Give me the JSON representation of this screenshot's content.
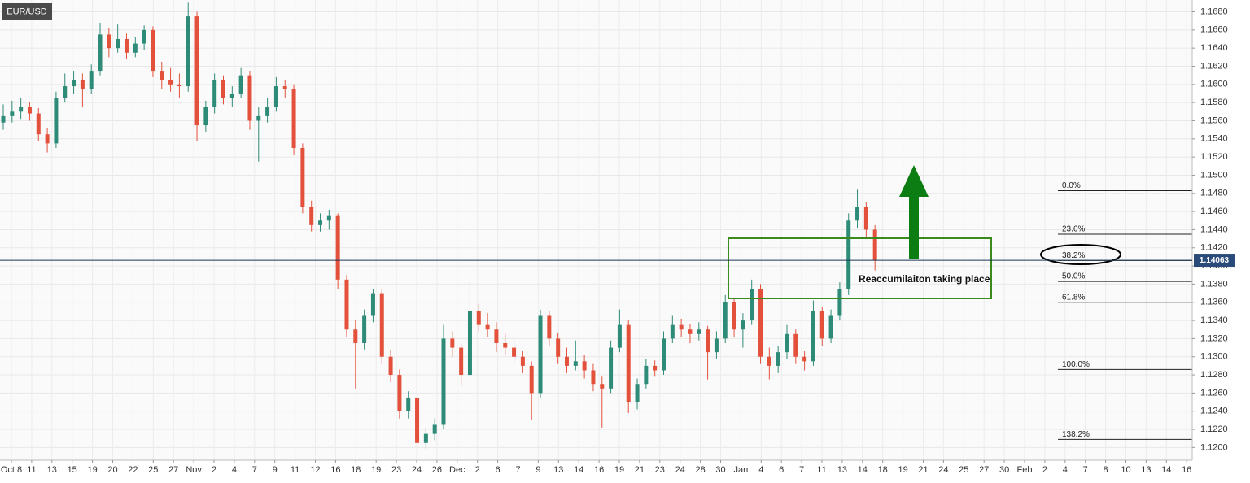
{
  "chart_data": {
    "type": "candlestick",
    "title": "EUR/USD",
    "annotation": "Reaccumilaiton taking place",
    "up_color": "#2e8b77",
    "down_color": "#e3513d",
    "grid": true,
    "ylim": [
      1.1186,
      1.1693
    ],
    "yticks": [
      {
        "value": 1.12,
        "label": "1.1200"
      },
      {
        "value": 1.122,
        "label": "1.1220"
      },
      {
        "value": 1.124,
        "label": "1.1240"
      },
      {
        "value": 1.126,
        "label": "1.1260"
      },
      {
        "value": 1.128,
        "label": "1.1280"
      },
      {
        "value": 1.13,
        "label": "1.1300"
      },
      {
        "value": 1.132,
        "label": "1.1320"
      },
      {
        "value": 1.134,
        "label": "1.1340"
      },
      {
        "value": 1.136,
        "label": "1.1360"
      },
      {
        "value": 1.138,
        "label": "1.1380"
      },
      {
        "value": 1.14,
        "label": "1.1400"
      },
      {
        "value": 1.142,
        "label": "1.1420"
      },
      {
        "value": 1.144,
        "label": "1.1440"
      },
      {
        "value": 1.146,
        "label": "1.1460"
      },
      {
        "value": 1.148,
        "label": "1.1480"
      },
      {
        "value": 1.15,
        "label": "1.1500"
      },
      {
        "value": 1.152,
        "label": "1.1520"
      },
      {
        "value": 1.154,
        "label": "1.1540"
      },
      {
        "value": 1.156,
        "label": "1.1560"
      },
      {
        "value": 1.158,
        "label": "1.1580"
      },
      {
        "value": 1.16,
        "label": "1.1600"
      },
      {
        "value": 1.162,
        "label": "1.1620"
      },
      {
        "value": 1.164,
        "label": "1.1640"
      },
      {
        "value": 1.166,
        "label": "1.1660"
      },
      {
        "value": 1.168,
        "label": "1.1680"
      }
    ],
    "categories": [
      "Oct 8",
      "11",
      "13",
      "15",
      "19",
      "20",
      "22",
      "25",
      "27",
      "Nov",
      "2",
      "4",
      "7",
      "9",
      "11",
      "12",
      "16",
      "18",
      "19",
      "23",
      "24",
      "26",
      "Dec",
      "2",
      "6",
      "7",
      "9",
      "13",
      "14",
      "16",
      "19",
      "21",
      "23",
      "24",
      "28",
      "30",
      "Jan",
      "4",
      "6",
      "7",
      "11",
      "13",
      "14",
      "18",
      "19",
      "21",
      "24",
      "25",
      "27",
      "30",
      "Feb",
      "2",
      "4",
      "7",
      "8",
      "10",
      "13",
      "14",
      "16"
    ],
    "last_price": 1.14063,
    "fib_levels": [
      {
        "label": "0.0%",
        "value": 1.1483
      },
      {
        "label": "23.6%",
        "value": 1.1435
      },
      {
        "label": "38.2%",
        "value": 1.1406
      },
      {
        "label": "50.0%",
        "value": 1.1383
      },
      {
        "label": "61.8%",
        "value": 1.136
      },
      {
        "label": "100.0%",
        "value": 1.1286
      },
      {
        "label": "138.2%",
        "value": 1.1209
      }
    ],
    "candles": [
      [
        1.1558,
        1.1578,
        1.155,
        1.1565
      ],
      [
        1.1565,
        1.1582,
        1.1558,
        1.157
      ],
      [
        1.157,
        1.1585,
        1.1562,
        1.1575
      ],
      [
        1.1575,
        1.158,
        1.156,
        1.1568
      ],
      [
        1.1568,
        1.1574,
        1.1538,
        1.1545
      ],
      [
        1.1545,
        1.1552,
        1.1525,
        1.1535
      ],
      [
        1.1535,
        1.1592,
        1.153,
        1.1585
      ],
      [
        1.1585,
        1.1612,
        1.158,
        1.1598
      ],
      [
        1.1598,
        1.1615,
        1.159,
        1.1605
      ],
      [
        1.1605,
        1.1612,
        1.1575,
        1.1595
      ],
      [
        1.1595,
        1.1622,
        1.159,
        1.1615
      ],
      [
        1.1615,
        1.1668,
        1.161,
        1.1655
      ],
      [
        1.1655,
        1.1662,
        1.163,
        1.164
      ],
      [
        1.164,
        1.1666,
        1.1635,
        1.165
      ],
      [
        1.165,
        1.1656,
        1.1628,
        1.1635
      ],
      [
        1.1635,
        1.1652,
        1.163,
        1.1645
      ],
      [
        1.1645,
        1.1665,
        1.1638,
        1.166
      ],
      [
        1.166,
        1.1664,
        1.1608,
        1.1615
      ],
      [
        1.1615,
        1.1625,
        1.1595,
        1.1605
      ],
      [
        1.1605,
        1.1618,
        1.1592,
        1.16
      ],
      [
        1.16,
        1.1612,
        1.1585,
        1.1598
      ],
      [
        1.1598,
        1.169,
        1.1592,
        1.1675
      ],
      [
        1.1675,
        1.168,
        1.1538,
        1.1555
      ],
      [
        1.1555,
        1.1582,
        1.1548,
        1.1575
      ],
      [
        1.1575,
        1.1612,
        1.1568,
        1.1605
      ],
      [
        1.1605,
        1.161,
        1.1578,
        1.1585
      ],
      [
        1.1585,
        1.1598,
        1.1575,
        1.159
      ],
      [
        1.159,
        1.1618,
        1.1585,
        1.161
      ],
      [
        1.161,
        1.1615,
        1.155,
        1.156
      ],
      [
        1.156,
        1.1575,
        1.1515,
        1.1565
      ],
      [
        1.1565,
        1.1585,
        1.1558,
        1.1575
      ],
      [
        1.1575,
        1.1608,
        1.157,
        1.1598
      ],
      [
        1.1598,
        1.1605,
        1.1585,
        1.1595
      ],
      [
        1.1595,
        1.16,
        1.1522,
        1.153
      ],
      [
        1.153,
        1.1535,
        1.1458,
        1.1465
      ],
      [
        1.1465,
        1.1472,
        1.1438,
        1.1445
      ],
      [
        1.1445,
        1.1458,
        1.1438,
        1.145
      ],
      [
        1.145,
        1.1462,
        1.144,
        1.1455
      ],
      [
        1.1455,
        1.1458,
        1.1375,
        1.1385
      ],
      [
        1.1385,
        1.139,
        1.1322,
        1.133
      ],
      [
        1.133,
        1.134,
        1.1265,
        1.1315
      ],
      [
        1.1315,
        1.1352,
        1.1308,
        1.1345
      ],
      [
        1.1345,
        1.1375,
        1.1338,
        1.137
      ],
      [
        1.137,
        1.1374,
        1.1292,
        1.13
      ],
      [
        1.13,
        1.1308,
        1.1272,
        1.128
      ],
      [
        1.128,
        1.1286,
        1.1232,
        1.124
      ],
      [
        1.124,
        1.1262,
        1.1232,
        1.1255
      ],
      [
        1.1255,
        1.126,
        1.1193,
        1.1205
      ],
      [
        1.1205,
        1.1222,
        1.1198,
        1.1215
      ],
      [
        1.1215,
        1.1232,
        1.1208,
        1.1225
      ],
      [
        1.1225,
        1.1335,
        1.122,
        1.132
      ],
      [
        1.132,
        1.1328,
        1.13,
        1.131
      ],
      [
        1.131,
        1.1315,
        1.1268,
        1.128
      ],
      [
        1.128,
        1.1382,
        1.1275,
        1.135
      ],
      [
        1.135,
        1.1358,
        1.1328,
        1.1335
      ],
      [
        1.1335,
        1.1348,
        1.1322,
        1.133
      ],
      [
        1.133,
        1.1338,
        1.1305,
        1.1315
      ],
      [
        1.1315,
        1.1325,
        1.1302,
        1.131
      ],
      [
        1.131,
        1.1318,
        1.1292,
        1.13
      ],
      [
        1.13,
        1.1306,
        1.1282,
        1.129
      ],
      [
        1.129,
        1.1295,
        1.123,
        1.126
      ],
      [
        1.126,
        1.1352,
        1.1255,
        1.1345
      ],
      [
        1.1345,
        1.135,
        1.1312,
        1.132
      ],
      [
        1.132,
        1.1326,
        1.1292,
        1.13
      ],
      [
        1.13,
        1.131,
        1.1282,
        1.129
      ],
      [
        1.129,
        1.1318,
        1.1285,
        1.1295
      ],
      [
        1.1295,
        1.1302,
        1.1276,
        1.1285
      ],
      [
        1.1285,
        1.1292,
        1.1262,
        1.127
      ],
      [
        1.127,
        1.1278,
        1.1222,
        1.1265
      ],
      [
        1.1265,
        1.1318,
        1.126,
        1.131
      ],
      [
        1.131,
        1.1352,
        1.1305,
        1.1335
      ],
      [
        1.1335,
        1.134,
        1.1238,
        1.125
      ],
      [
        1.125,
        1.1276,
        1.1242,
        1.127
      ],
      [
        1.127,
        1.1298,
        1.1265,
        1.129
      ],
      [
        1.129,
        1.1296,
        1.1278,
        1.1285
      ],
      [
        1.1285,
        1.1328,
        1.128,
        1.132
      ],
      [
        1.132,
        1.1345,
        1.1315,
        1.1335
      ],
      [
        1.1335,
        1.1342,
        1.1322,
        1.133
      ],
      [
        1.133,
        1.1336,
        1.1315,
        1.1325
      ],
      [
        1.1325,
        1.1338,
        1.1318,
        1.133
      ],
      [
        1.133,
        1.1334,
        1.1275,
        1.1305
      ],
      [
        1.1305,
        1.1328,
        1.1298,
        1.132
      ],
      [
        1.132,
        1.1368,
        1.1315,
        1.136
      ],
      [
        1.136,
        1.1364,
        1.1322,
        1.133
      ],
      [
        1.133,
        1.1348,
        1.131,
        1.134
      ],
      [
        1.134,
        1.1385,
        1.1335,
        1.1375
      ],
      [
        1.1375,
        1.138,
        1.1292,
        1.13
      ],
      [
        1.13,
        1.131,
        1.1275,
        1.129
      ],
      [
        1.129,
        1.1312,
        1.1282,
        1.1305
      ],
      [
        1.1305,
        1.1335,
        1.1298,
        1.1325
      ],
      [
        1.1325,
        1.133,
        1.1292,
        1.13
      ],
      [
        1.13,
        1.1306,
        1.1285,
        1.1295
      ],
      [
        1.1295,
        1.1362,
        1.129,
        1.135
      ],
      [
        1.135,
        1.1355,
        1.1312,
        1.132
      ],
      [
        1.132,
        1.1352,
        1.1315,
        1.1345
      ],
      [
        1.1345,
        1.1382,
        1.134,
        1.1375
      ],
      [
        1.1375,
        1.1458,
        1.1368,
        1.145
      ],
      [
        1.145,
        1.1484,
        1.1442,
        1.1465
      ],
      [
        1.1465,
        1.147,
        1.1432,
        1.144
      ],
      [
        1.144,
        1.1445,
        1.1395,
        1.1406
      ]
    ]
  }
}
